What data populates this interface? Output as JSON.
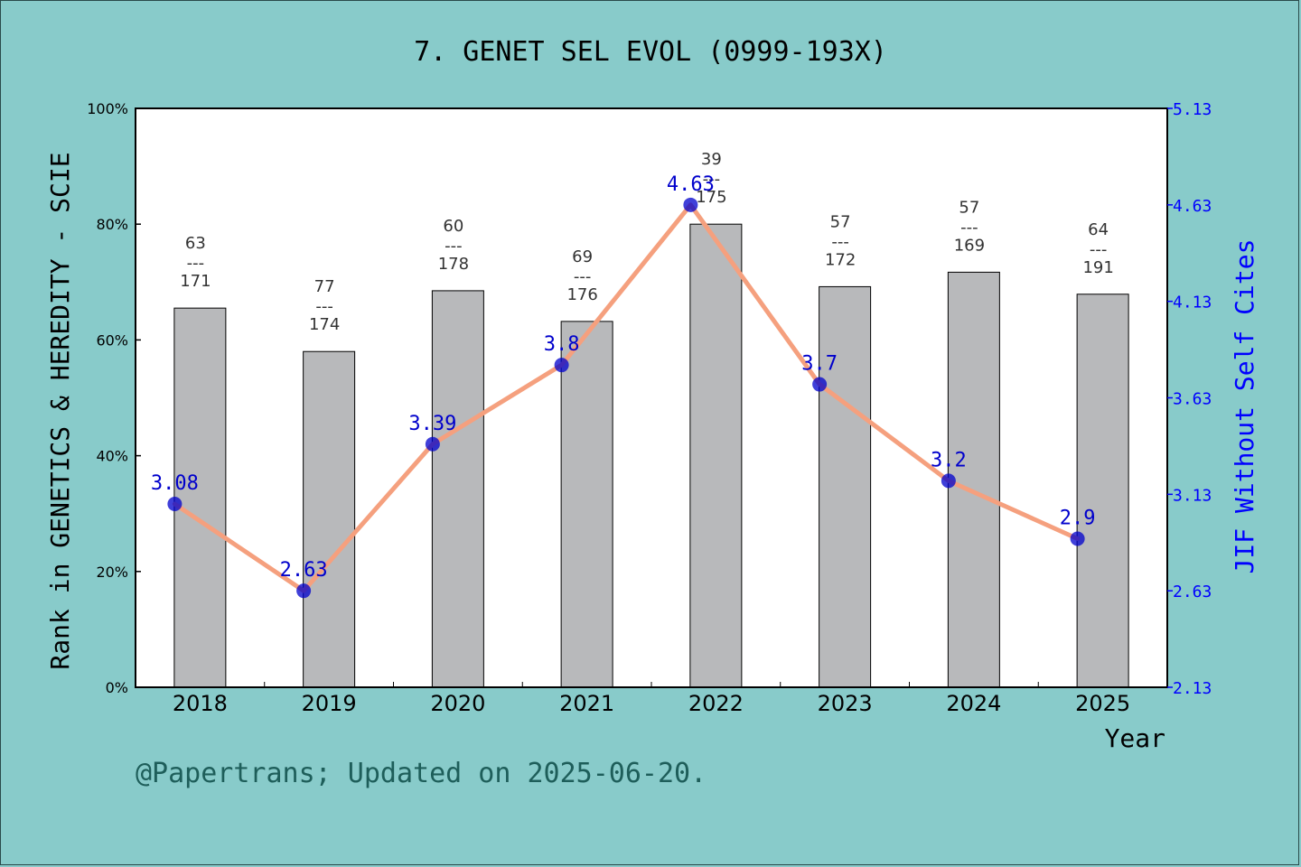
{
  "chart_data": {
    "type": "bar",
    "title": "7. GENET SEL EVOL (0999-193X)",
    "xlabel": "Year",
    "ylabel": "Rank in GENETICS & HEREDITY - SCIE",
    "y2label": "JIF Without Self Cites",
    "categories": [
      "2018",
      "2019",
      "2020",
      "2021",
      "2022",
      "2023",
      "2024",
      "2025"
    ],
    "ylim": [
      0,
      100
    ],
    "y_ticks": [
      "0%",
      "20%",
      "40%",
      "60%",
      "80%",
      "100%"
    ],
    "y2lim": [
      2.13,
      5.13
    ],
    "y2_ticks": [
      "2.13",
      "2.63",
      "3.13",
      "3.63",
      "4.13",
      "4.63",
      "5.13"
    ],
    "series": [
      {
        "type": "bar",
        "values": [
          65.5,
          58.0,
          68.5,
          63.2,
          80.0,
          69.2,
          71.7,
          67.9
        ],
        "rank": [
          "63",
          "77",
          "60",
          "69",
          "39",
          "57",
          "57",
          "64"
        ],
        "total": [
          "171",
          "174",
          "178",
          "176",
          "175",
          "172",
          "169",
          "191"
        ],
        "separator": "---",
        "color": "#B8B9BB"
      },
      {
        "type": "line",
        "axis": "right",
        "values": [
          3.08,
          2.63,
          3.39,
          3.8,
          4.63,
          3.7,
          3.2,
          2.9
        ],
        "labels": [
          "3.08",
          "2.63",
          "3.39",
          "3.8",
          "4.63",
          "3.7",
          "3.2",
          "2.9"
        ],
        "line_color": "#F5A07E",
        "marker_color": "#0000CC"
      }
    ],
    "grid": false
  },
  "footer": "@Papertrans; Updated on 2025-06-20."
}
